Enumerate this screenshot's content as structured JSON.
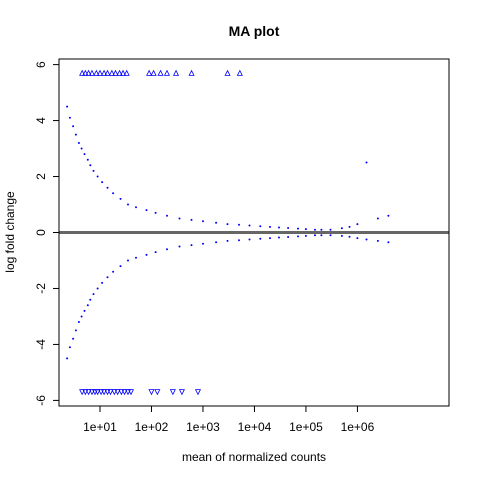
{
  "chart_data": {
    "type": "scatter",
    "title": "MA plot",
    "xlabel": "mean of normalized counts",
    "ylabel": "log fold change",
    "x_scale": "log10",
    "xlim": [
      1.6,
      60000000
    ],
    "ylim": [
      -6.2,
      6.2
    ],
    "x_ticks": [
      {
        "value": 10,
        "label": "1e+01"
      },
      {
        "value": 100,
        "label": "1e+02"
      },
      {
        "value": 1000,
        "label": "1e+03"
      },
      {
        "value": 10000,
        "label": "1e+04"
      },
      {
        "value": 100000,
        "label": "1e+05"
      },
      {
        "value": 1000000,
        "label": "1e+06"
      }
    ],
    "y_ticks": [
      {
        "value": -6,
        "label": "-6"
      },
      {
        "value": -4,
        "label": "-4"
      },
      {
        "value": -2,
        "label": "-2"
      },
      {
        "value": 0,
        "label": "0"
      },
      {
        "value": 2,
        "label": "2"
      },
      {
        "value": 4,
        "label": "4"
      },
      {
        "value": 6,
        "label": "6"
      }
    ],
    "reference_line": {
      "y": 0,
      "color": "#666666"
    },
    "point_color": "#0000ff",
    "clipped_marker": "triangle",
    "clip_value": 5.7,
    "clipped_up_x": [
      4.5,
      5.2,
      6,
      7,
      8.5,
      10,
      12,
      14,
      17,
      20,
      24,
      28,
      33,
      90,
      110,
      150,
      200,
      300,
      600,
      3000,
      5200
    ],
    "clipped_down_x": [
      4.5,
      5.2,
      6,
      7,
      8,
      9,
      10.5,
      12,
      14,
      16,
      19,
      22,
      26,
      30,
      35,
      40,
      100,
      130,
      260,
      390,
      800
    ],
    "series": [
      {
        "name": "",
        "x": [
          2.3,
          2.6,
          3,
          3.4,
          3.9,
          4.4,
          5,
          5.8,
          6.5,
          7.5,
          9,
          11,
          14,
          18,
          25,
          35,
          50,
          80,
          120,
          200,
          350,
          600,
          1000,
          1800,
          3000,
          5000,
          8000,
          13000,
          20000,
          30000,
          45000,
          70000,
          100000,
          150000,
          200000,
          300000,
          500000,
          700000,
          1000000,
          1500000,
          2500000,
          4000000,
          2.3,
          2.6,
          3,
          3.4,
          3.9,
          4.4,
          5,
          5.8,
          6.5,
          7.5,
          9,
          11,
          14,
          18,
          25,
          35,
          50,
          80,
          120,
          200,
          350,
          600,
          1000,
          1800,
          3000,
          5000,
          8000,
          13000,
          20000,
          30000,
          45000,
          70000,
          100000,
          150000,
          200000,
          300000,
          500000,
          700000,
          1000000,
          1500000,
          2500000,
          4000000
        ],
        "y": [
          4.5,
          4.1,
          3.8,
          3.5,
          3.2,
          3.0,
          2.8,
          2.6,
          2.4,
          2.2,
          2.0,
          1.8,
          1.6,
          1.4,
          1.2,
          1.0,
          0.9,
          0.8,
          0.7,
          0.6,
          0.5,
          0.45,
          0.4,
          0.35,
          0.3,
          0.28,
          0.25,
          0.22,
          0.2,
          0.18,
          0.16,
          0.14,
          0.12,
          0.1,
          0.1,
          0.1,
          0.15,
          0.2,
          0.3,
          2.5,
          0.5,
          0.6,
          -4.5,
          -4.1,
          -3.8,
          -3.5,
          -3.2,
          -3.0,
          -2.8,
          -2.6,
          -2.4,
          -2.2,
          -2.0,
          -1.8,
          -1.6,
          -1.4,
          -1.2,
          -1.0,
          -0.9,
          -0.8,
          -0.7,
          -0.6,
          -0.5,
          -0.45,
          -0.4,
          -0.35,
          -0.3,
          -0.28,
          -0.25,
          -0.22,
          -0.2,
          -0.18,
          -0.16,
          -0.14,
          -0.12,
          -0.1,
          -0.1,
          -0.1,
          -0.12,
          -0.15,
          -0.2,
          -0.25,
          -0.3,
          -0.35
        ]
      }
    ]
  }
}
